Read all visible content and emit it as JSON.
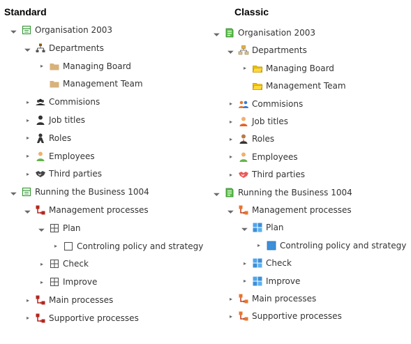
{
  "standard": {
    "title": "Standard",
    "rows": [
      {
        "label": "Organisation 2003",
        "level": 0,
        "arrow": "expanded",
        "icon": "org-icon"
      },
      {
        "label": "Departments",
        "level": 1,
        "arrow": "expanded",
        "icon": "hierarchy-icon"
      },
      {
        "label": "Managing Board",
        "level": 2,
        "arrow": "collapsed",
        "icon": "folder-icon"
      },
      {
        "label": "Management Team",
        "level": 2,
        "arrow": "none",
        "icon": "folder-icon"
      },
      {
        "label": "Commisions",
        "level": 1,
        "arrow": "collapsed",
        "icon": "group-icon"
      },
      {
        "label": "Job titles",
        "level": 1,
        "arrow": "collapsed",
        "icon": "person-icon"
      },
      {
        "label": "Roles",
        "level": 1,
        "arrow": "collapsed",
        "icon": "role-icon"
      },
      {
        "label": "Employees",
        "level": 1,
        "arrow": "collapsed",
        "icon": "employee-icon"
      },
      {
        "label": "Third parties",
        "level": 1,
        "arrow": "collapsed",
        "icon": "handshake-icon"
      },
      {
        "label": "Running the Business 1004",
        "level": 0,
        "arrow": "expanded",
        "icon": "org-icon"
      },
      {
        "label": "Management processes",
        "level": 1,
        "arrow": "expanded",
        "icon": "process-icon"
      },
      {
        "label": "Plan",
        "level": 2,
        "arrow": "expanded",
        "icon": "grid-icon"
      },
      {
        "label": "Controling policy and strategy",
        "level": 3,
        "arrow": "collapsed",
        "icon": "square-icon"
      },
      {
        "label": "Check",
        "level": 2,
        "arrow": "collapsed",
        "icon": "grid-icon"
      },
      {
        "label": "Improve",
        "level": 2,
        "arrow": "collapsed",
        "icon": "grid-icon"
      },
      {
        "label": "Main processes",
        "level": 1,
        "arrow": "collapsed",
        "icon": "process-icon"
      },
      {
        "label": "Supportive processes",
        "level": 1,
        "arrow": "collapsed",
        "icon": "process-icon"
      }
    ]
  },
  "classic": {
    "title": "Classic",
    "rows": [
      {
        "label": "Organisation 2003",
        "level": 0,
        "arrow": "expanded",
        "icon": "org-color-icon"
      },
      {
        "label": "Departments",
        "level": 1,
        "arrow": "expanded",
        "icon": "hierarchy-color-icon"
      },
      {
        "label": "Managing Board",
        "level": 2,
        "arrow": "collapsed",
        "icon": "folder-color-icon"
      },
      {
        "label": "Management Team",
        "level": 2,
        "arrow": "none",
        "icon": "folder-color-icon"
      },
      {
        "label": "Commisions",
        "level": 1,
        "arrow": "collapsed",
        "icon": "group-color-icon"
      },
      {
        "label": "Job titles",
        "level": 1,
        "arrow": "collapsed",
        "icon": "person-color-icon"
      },
      {
        "label": "Roles",
        "level": 1,
        "arrow": "collapsed",
        "icon": "role-color-icon"
      },
      {
        "label": "Employees",
        "level": 1,
        "arrow": "collapsed",
        "icon": "employee-color-icon"
      },
      {
        "label": "Third parties",
        "level": 1,
        "arrow": "collapsed",
        "icon": "handshake-color-icon"
      },
      {
        "label": "Running the Business 1004",
        "level": 0,
        "arrow": "expanded",
        "icon": "org-color-icon"
      },
      {
        "label": "Management processes",
        "level": 1,
        "arrow": "expanded",
        "icon": "process-color-icon"
      },
      {
        "label": "Plan",
        "level": 2,
        "arrow": "expanded",
        "icon": "grid-color-icon"
      },
      {
        "label": "Controling policy and strategy",
        "level": 3,
        "arrow": "collapsed",
        "icon": "square-color-icon"
      },
      {
        "label": "Check",
        "level": 2,
        "arrow": "collapsed",
        "icon": "grid-color-icon"
      },
      {
        "label": "Improve",
        "level": 2,
        "arrow": "collapsed",
        "icon": "grid-color-icon"
      },
      {
        "label": "Main processes",
        "level": 1,
        "arrow": "collapsed",
        "icon": "process-color-icon"
      },
      {
        "label": "Supportive processes",
        "level": 1,
        "arrow": "collapsed",
        "icon": "process-color-icon"
      }
    ]
  },
  "colors": {
    "text": "#333333",
    "arrow": "#6a6a6a",
    "org_green": "#3a9a3a",
    "folder_tan": "#d8b27a",
    "folder_yellow": "#f2c200",
    "process_red": "#b3261e",
    "process_orange": "#e8742a",
    "grid_blue": "#3d8fd8",
    "employee_green": "#62b64a"
  }
}
